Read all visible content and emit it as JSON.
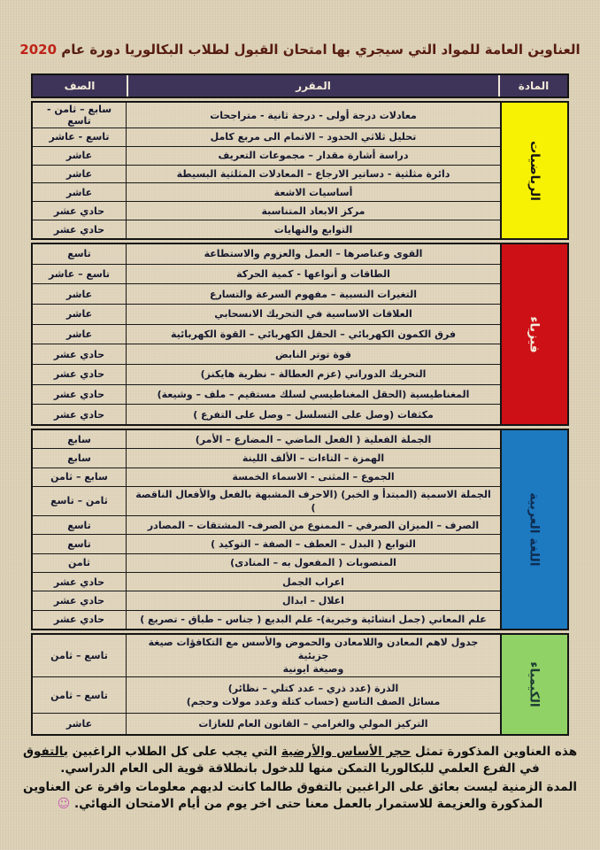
{
  "title": {
    "text": "العناوين العامة للمواد التي سيجري بها امتحان القبول لطلاب البكالوريا دورة عام",
    "year": "2020",
    "text_color": "#571c12",
    "year_color": "#bf2317"
  },
  "table": {
    "header": {
      "grade": "الصف",
      "curriculum": "المقرر",
      "subject": "المادة",
      "bg_color": "#3e3459"
    },
    "sections": [
      {
        "id": "math",
        "label": "الرياضيات",
        "color": "#f7f203",
        "label_color": "#161616",
        "rows": [
          {
            "topic": "معادلات درجة أولى - درجة ثانية - متراجحات",
            "grade": "سابع – ثامن - تاسع"
          },
          {
            "topic": "تحليل ثلاثي الحدود – الاتمام الى مربع كامل",
            "grade": "تاسع - عاشر"
          },
          {
            "topic": "دراسة أشارة مقدار – مجموعات التعريف",
            "grade": "عاشر"
          },
          {
            "topic": "دائرة مثلثية - دساتير الارجاع – المعادلات المثلثية البسيطة",
            "grade": "عاشر"
          },
          {
            "topic": "أساسيات الاشعة",
            "grade": "عاشر"
          },
          {
            "topic": "مركز الابعاد المتناسبة",
            "grade": "حادي عشر"
          },
          {
            "topic": "التوابع والنهايات",
            "grade": "حادي عشر"
          }
        ]
      },
      {
        "id": "physics",
        "label": "فيزياء",
        "color": "#cd1016",
        "label_color": "#f3ead9",
        "rows": [
          {
            "topic": "القوى وعناصرها – العمل والعزوم والاستطاعة",
            "grade": "تاسع"
          },
          {
            "topic": "الطاقات و أنواعها - كمية الحركة",
            "grade": "تاسع – عاشر"
          },
          {
            "topic": "التغيرات النسبية – مفهوم السرعة والتسارع",
            "grade": "عاشر"
          },
          {
            "topic": "العلاقات الاساسية في التحريك الانسحابي",
            "grade": "عاشر"
          },
          {
            "topic": "فرق الكمون الكهربائي – الحقل الكهربائي – القوة الكهربائية",
            "grade": "عاشر"
          },
          {
            "topic": "قوة توتر النابض",
            "grade": "حادي عشر"
          },
          {
            "topic": "التحريك الدوراني (عزم العطالة – نظرية هايكنز)",
            "grade": "حادي عشر"
          },
          {
            "topic": "المغناطيسية (الحقل المغناطيسي لسلك مستقيم – ملف – وشيعة)",
            "grade": "حادي عشر"
          },
          {
            "topic": "مكثفات (وصل على التسلسل – وصل على التفرع )",
            "grade": "حادي عشر"
          }
        ]
      },
      {
        "id": "arabic",
        "label": "اللغة العربية",
        "color": "#1d79c0",
        "label_color": "#0e2d52",
        "rows": [
          {
            "topic": "الجملة الفعلية ( الفعل الماضي – المضارع – الأمر)",
            "grade": "سابع"
          },
          {
            "topic": "الهمزة – التاءات – الألف اللينة",
            "grade": "سابع"
          },
          {
            "topic": "الجموع – المثنى - الاسماء الخمسة",
            "grade": "سابع – ثامن"
          },
          {
            "topic": "الجملة الاسمية (المبتدأ و الخبر) (الاحرف المشبهة بالفعل والأفعال الناقصة )",
            "grade": "ثامن – تاسع"
          },
          {
            "topic": "الصرف – الميزان الصرفي – الممنوع من الصرف- المشتقات – المصادر",
            "grade": "تاسع"
          },
          {
            "topic": "التوابع ( البدل – العطف – الصفة – التوكيد )",
            "grade": "تاسع"
          },
          {
            "topic": "المنصوبات ( المفعول به – المنادى)",
            "grade": "ثامن"
          },
          {
            "topic": "اعراب الجمل",
            "grade": "حادي عشر"
          },
          {
            "topic": "اعلال – ابدال",
            "grade": "حادي عشر"
          },
          {
            "topic": "علم المعاني (جمل انشائية وخبرية)- علم البديع ( جناس – طباق - تصريع )",
            "grade": "حادي عشر"
          }
        ]
      },
      {
        "id": "chemistry",
        "label": "الكيمياء",
        "color": "#90d266",
        "label_color": "#1c3a33",
        "rows": [
          {
            "topic": "جدول لاهم المعادن واللامعادن والحموض والأسس مع التكافؤات صيغة جزيئية\nوصيغة ايونية",
            "grade": "تاسع – ثامن",
            "tall": true
          },
          {
            "topic": "الذرة (عدد ذري – عدد كتلي – نظائر)\nمسائل الصف التاسع (حساب كتلة وعدد مولات وحجم)",
            "grade": "تاسع – ثامن",
            "tall": true
          },
          {
            "topic": "التركيز المولي والغرامي – القانون العام للغازات",
            "grade": "عاشر"
          }
        ]
      }
    ]
  },
  "footer": {
    "p1_a": "هذه العناوين المذكورة تمثل ",
    "p1_b": "حجر الأساس والأرضية",
    "p1_c": " التي يجب على كل الطلاب الراغبين ",
    "p1_d": "بالتفوق",
    "p1_e": " في الفرع العلمي للبكالوريا التمكن منها للدخول بانطلاقة قوية الى العام الدراسي.",
    "p2": "المدة الزمنية ليست بعائق على الراغبين بالتفوق طالما كانت لديهم معلومات وافرة عن العناوين المذكورة والعزيمة للاستمرار بالعمل معنا حتى اخر يوم من أيام الامتحان النهائي.",
    "smiley": "☺"
  }
}
